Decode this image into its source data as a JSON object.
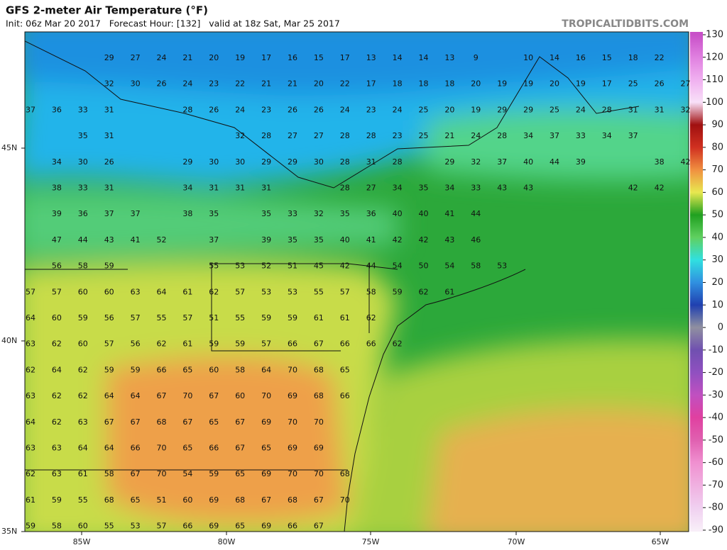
{
  "header": {
    "title": "GFS 2-meter Air Temperature (°F)",
    "subtitle": "Init: 06z Mar 20 2017   Forecast Hour: [132]   valid at 18z Sat, Mar 25 2017",
    "brand": "TROPICALTIDBITS.COM"
  },
  "map": {
    "latitude_labels": [
      "45N",
      "40N",
      "35N"
    ],
    "longitude_labels": [
      "85W",
      "80W",
      "75W",
      "70W",
      "65W"
    ],
    "temperature_rows": [
      [
        null,
        null,
        null,
        29,
        27,
        24,
        21,
        20,
        19,
        17,
        16,
        15,
        17,
        13,
        14,
        14,
        13,
        9,
        null,
        10,
        14,
        16,
        15,
        18,
        22
      ],
      [
        null,
        null,
        null,
        32,
        30,
        26,
        24,
        23,
        22,
        21,
        21,
        20,
        22,
        17,
        18,
        18,
        18,
        20,
        19,
        19,
        20,
        19,
        17,
        25,
        26,
        27
      ],
      [
        37,
        36,
        33,
        31,
        null,
        null,
        28,
        26,
        24,
        23,
        26,
        26,
        24,
        23,
        24,
        25,
        20,
        19,
        29,
        29,
        25,
        24,
        28,
        31,
        31,
        32
      ],
      [
        null,
        null,
        35,
        31,
        null,
        null,
        null,
        null,
        32,
        28,
        27,
        27,
        28,
        28,
        23,
        25,
        21,
        24,
        28,
        34,
        37,
        33,
        34,
        37
      ],
      [
        null,
        34,
        30,
        26,
        null,
        null,
        29,
        30,
        30,
        29,
        29,
        30,
        28,
        31,
        28,
        null,
        29,
        32,
        37,
        40,
        44,
        39,
        null,
        null,
        38,
        42
      ],
      [
        null,
        38,
        33,
        31,
        null,
        null,
        34,
        31,
        31,
        31,
        null,
        null,
        28,
        27,
        34,
        35,
        34,
        33,
        43,
        43,
        null,
        null,
        null,
        42,
        42
      ],
      [
        null,
        39,
        36,
        37,
        37,
        null,
        38,
        35,
        null,
        35,
        33,
        32,
        35,
        36,
        40,
        40,
        41,
        44
      ],
      [
        null,
        47,
        44,
        43,
        41,
        52,
        null,
        37,
        null,
        39,
        35,
        35,
        40,
        41,
        42,
        42,
        43,
        46
      ],
      [
        null,
        56,
        58,
        59,
        null,
        null,
        null,
        55,
        53,
        52,
        51,
        45,
        42,
        44,
        54,
        50,
        54,
        58,
        53
      ],
      [
        57,
        57,
        60,
        60,
        63,
        64,
        61,
        62,
        57,
        53,
        53,
        55,
        57,
        58,
        59,
        62,
        61
      ],
      [
        64,
        60,
        59,
        56,
        57,
        55,
        57,
        51,
        55,
        59,
        59,
        61,
        61,
        62
      ],
      [
        63,
        62,
        60,
        57,
        56,
        62,
        61,
        59,
        59,
        57,
        66,
        67,
        66,
        66,
        62
      ],
      [
        62,
        64,
        62,
        59,
        59,
        66,
        65,
        60,
        58,
        64,
        70,
        68,
        65
      ],
      [
        63,
        62,
        62,
        64,
        64,
        67,
        70,
        67,
        60,
        70,
        69,
        68,
        66
      ],
      [
        64,
        62,
        63,
        67,
        67,
        68,
        67,
        65,
        67,
        69,
        70,
        70
      ],
      [
        63,
        63,
        64,
        64,
        66,
        70,
        65,
        66,
        67,
        65,
        69,
        69
      ],
      [
        62,
        63,
        61,
        58,
        67,
        70,
        54,
        59,
        65,
        69,
        70,
        70,
        68
      ],
      [
        61,
        59,
        55,
        68,
        65,
        51,
        60,
        69,
        68,
        67,
        68,
        67,
        70
      ],
      [
        59,
        58,
        60,
        55,
        53,
        57,
        66,
        69,
        65,
        69,
        66,
        67
      ]
    ]
  },
  "colorbar": {
    "ticks": [
      130,
      120,
      110,
      100,
      90,
      80,
      70,
      60,
      50,
      40,
      30,
      20,
      10,
      0,
      -10,
      -20,
      -30,
      -40,
      -50,
      -60,
      -70,
      -80,
      -90
    ],
    "colors": [
      "#c850c8",
      "#e080e0",
      "#f0b0f0",
      "#f8e0f8",
      "#a01010",
      "#d03020",
      "#f09040",
      "#e8e850",
      "#20a020",
      "#60d060",
      "#30e0e0",
      "#3090e0",
      "#2040b0",
      "#9090a0",
      "#7050b0",
      "#9050c0",
      "#c050c0",
      "#e040a0",
      "#e060b0",
      "#f090d0",
      "#f0b0e0",
      "#f0d0f0",
      "#f8eef8"
    ]
  }
}
